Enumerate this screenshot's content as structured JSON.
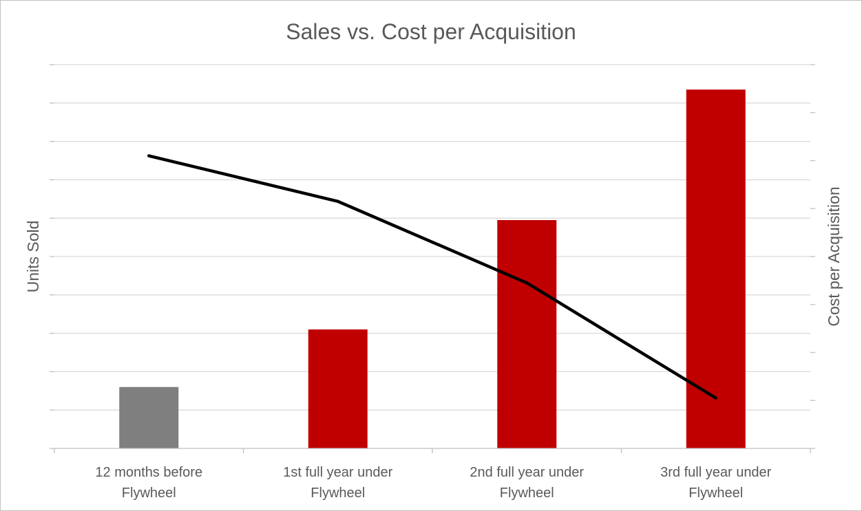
{
  "chart_data": {
    "type": "bar",
    "title": "Sales vs. Cost per Acquisition",
    "categories": [
      [
        "12 months before",
        "Flywheel"
      ],
      [
        "1st full year under",
        "Flywheel"
      ],
      [
        "2nd full year under",
        "Flywheel"
      ],
      [
        "3rd full year under",
        "Flywheel"
      ]
    ],
    "series": [
      {
        "type": "bar",
        "axis": "left",
        "values": [
          1.6,
          3.1,
          5.95,
          9.35
        ],
        "colors": [
          "#7f7f7f",
          "#c00000",
          "#c00000",
          "#c00000"
        ]
      },
      {
        "type": "line",
        "axis": "right",
        "values": [
          6.1,
          5.15,
          3.45,
          1.05
        ],
        "color": "#000000"
      }
    ],
    "ylabel": "Units Sold",
    "y2label": "Cost per Acquisition",
    "ylim": [
      0,
      10
    ],
    "y2lim": [
      0,
      8
    ],
    "ytick_count": 10,
    "y2tick_count": 8,
    "grid": true,
    "tick_labels_shown": false,
    "legend": "none"
  }
}
